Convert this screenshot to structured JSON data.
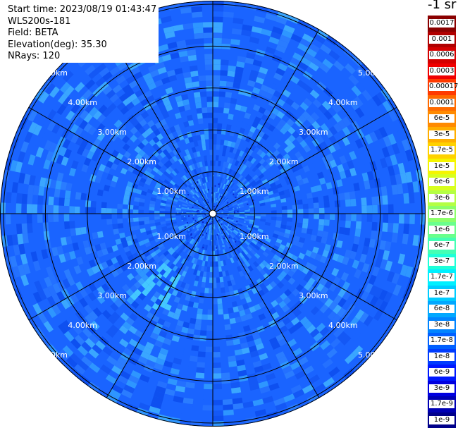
{
  "info": {
    "start_time": "Start time: 2023/08/19 01:43:47",
    "device": "WLS200s-181",
    "field": "Field: BETA",
    "elevation": "Elevation(deg): 35.30",
    "nrays": "NRays: 120"
  },
  "units_label": "-1 sr",
  "colorbar": {
    "labels": [
      "0.0017",
      "0.001",
      "0.0006",
      "0.0003",
      "0.00017",
      "0.0001",
      "6e-5",
      "3e-5",
      "1.7e-5",
      "1e-5",
      "6e-6",
      "3e-6",
      "1.7e-6",
      "1e-6",
      "6e-7",
      "3e-7",
      "1.7e-7",
      "1e-7",
      "6e-8",
      "3e-8",
      "1.7e-8",
      "1e-8",
      "6e-9",
      "3e-9",
      "1.7e-9",
      "1e-9"
    ],
    "colors": [
      "#8a0000",
      "#b00000",
      "#d40000",
      "#f00000",
      "#ff3a00",
      "#ff6a00",
      "#ff8a00",
      "#ffae00",
      "#ffd200",
      "#f5f500",
      "#d8ff1e",
      "#b4ff44",
      "#8cff6a",
      "#6aff8c",
      "#44ffb4",
      "#1effd8",
      "#00f0ff",
      "#00ccff",
      "#00a8ff",
      "#0084ff",
      "#0060ff",
      "#003cff",
      "#0018ff",
      "#0000e0",
      "#0000b4",
      "#00008a"
    ]
  },
  "chart_data": {
    "type": "heatmap",
    "subtype": "polar-ppi",
    "field": "BETA",
    "n_rays": 120,
    "elevation_deg": 35.3,
    "range_ring_labels": [
      "1.00km",
      "2.00km",
      "3.00km",
      "4.00km",
      "5.00km"
    ],
    "range_rings_km": [
      1,
      2,
      3,
      4,
      5
    ],
    "dominant_value_range": [
      "1.7e-9",
      "3e-8"
    ],
    "colors": {
      "ring": "#000000",
      "dominant": "#1a64ff",
      "light": "#2ea8ff",
      "dark": "#0a32d8"
    }
  }
}
